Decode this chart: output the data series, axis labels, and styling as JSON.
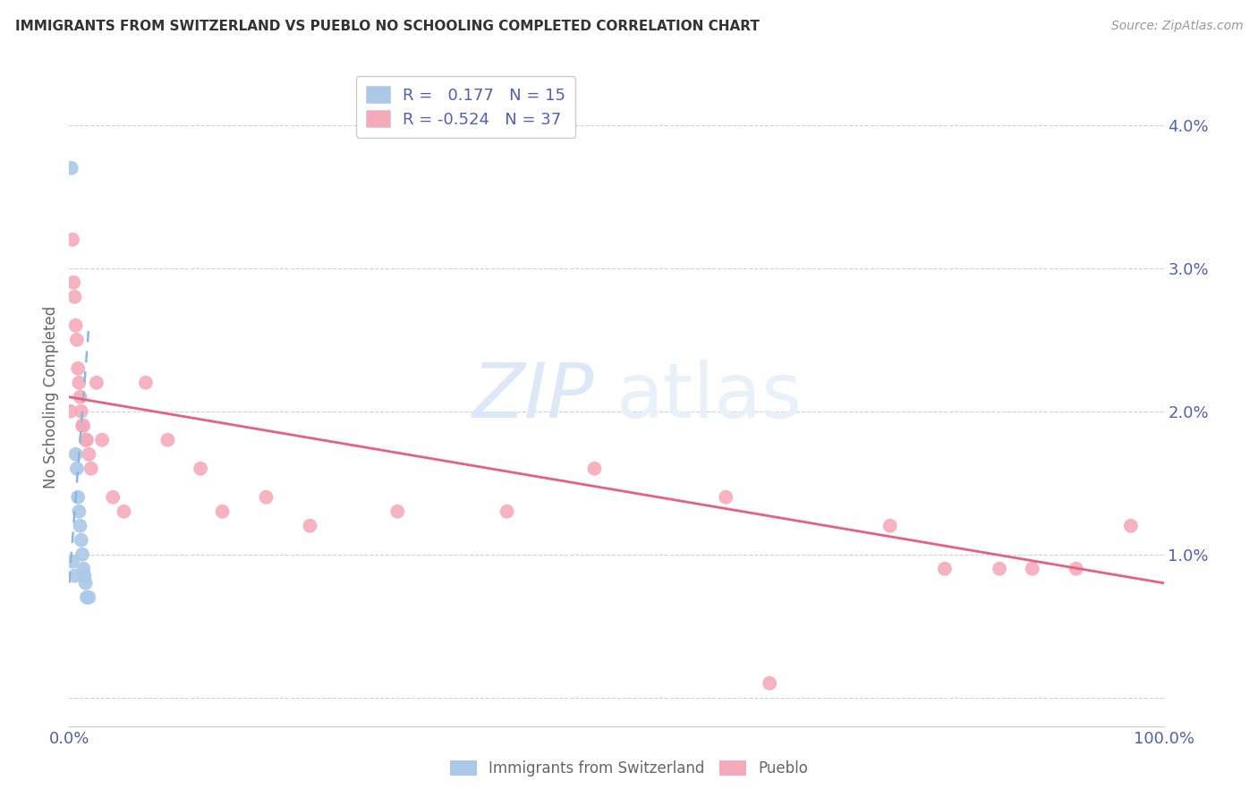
{
  "title": "IMMIGRANTS FROM SWITZERLAND VS PUEBLO NO SCHOOLING COMPLETED CORRELATION CHART",
  "source": "Source: ZipAtlas.com",
  "ylabel": "No Schooling Completed",
  "xlim": [
    0,
    1.0
  ],
  "ylim": [
    -0.002,
    0.044
  ],
  "yticks": [
    0.0,
    0.01,
    0.02,
    0.03,
    0.04
  ],
  "ytick_labels": [
    "",
    "1.0%",
    "2.0%",
    "3.0%",
    "4.0%"
  ],
  "xticks": [
    0.0,
    1.0
  ],
  "xtick_labels": [
    "0.0%",
    "100.0%"
  ],
  "blue_R": "0.177",
  "blue_N": "15",
  "pink_R": "-0.524",
  "pink_N": "37",
  "blue_scatter_x": [
    0.002,
    0.003,
    0.005,
    0.006,
    0.007,
    0.008,
    0.009,
    0.01,
    0.011,
    0.012,
    0.013,
    0.014,
    0.015,
    0.016,
    0.018
  ],
  "blue_scatter_y": [
    0.037,
    0.0095,
    0.0085,
    0.017,
    0.016,
    0.014,
    0.013,
    0.012,
    0.011,
    0.01,
    0.009,
    0.0085,
    0.008,
    0.007,
    0.007
  ],
  "pink_scatter_x": [
    0.001,
    0.003,
    0.004,
    0.005,
    0.006,
    0.007,
    0.008,
    0.009,
    0.01,
    0.011,
    0.012,
    0.013,
    0.015,
    0.016,
    0.018,
    0.02,
    0.025,
    0.03,
    0.04,
    0.05,
    0.07,
    0.09,
    0.12,
    0.14,
    0.18,
    0.22,
    0.3,
    0.4,
    0.48,
    0.6,
    0.64,
    0.75,
    0.8,
    0.85,
    0.88,
    0.92,
    0.97
  ],
  "pink_scatter_y": [
    0.02,
    0.032,
    0.029,
    0.028,
    0.026,
    0.025,
    0.023,
    0.022,
    0.021,
    0.02,
    0.019,
    0.019,
    0.018,
    0.018,
    0.017,
    0.016,
    0.022,
    0.018,
    0.014,
    0.013,
    0.022,
    0.018,
    0.016,
    0.013,
    0.014,
    0.012,
    0.013,
    0.013,
    0.016,
    0.014,
    0.001,
    0.012,
    0.009,
    0.009,
    0.009,
    0.009,
    0.012
  ],
  "blue_line_x": [
    0.0,
    0.018
  ],
  "blue_line_y": [
    0.008,
    0.026
  ],
  "pink_line_x": [
    0.0,
    1.0
  ],
  "pink_line_y": [
    0.021,
    0.008
  ],
  "scatter_size": 130,
  "blue_color": "#aac8e8",
  "pink_color": "#f5aabb",
  "blue_line_color": "#88b8e0",
  "pink_line_color": "#e86080",
  "axis_color": "#5060b8",
  "grid_color": "#d0d0e0",
  "background_color": "#ffffff",
  "watermark_zip": "ZIP",
  "watermark_atlas": "atlas",
  "watermark_color": "#dce8f5"
}
